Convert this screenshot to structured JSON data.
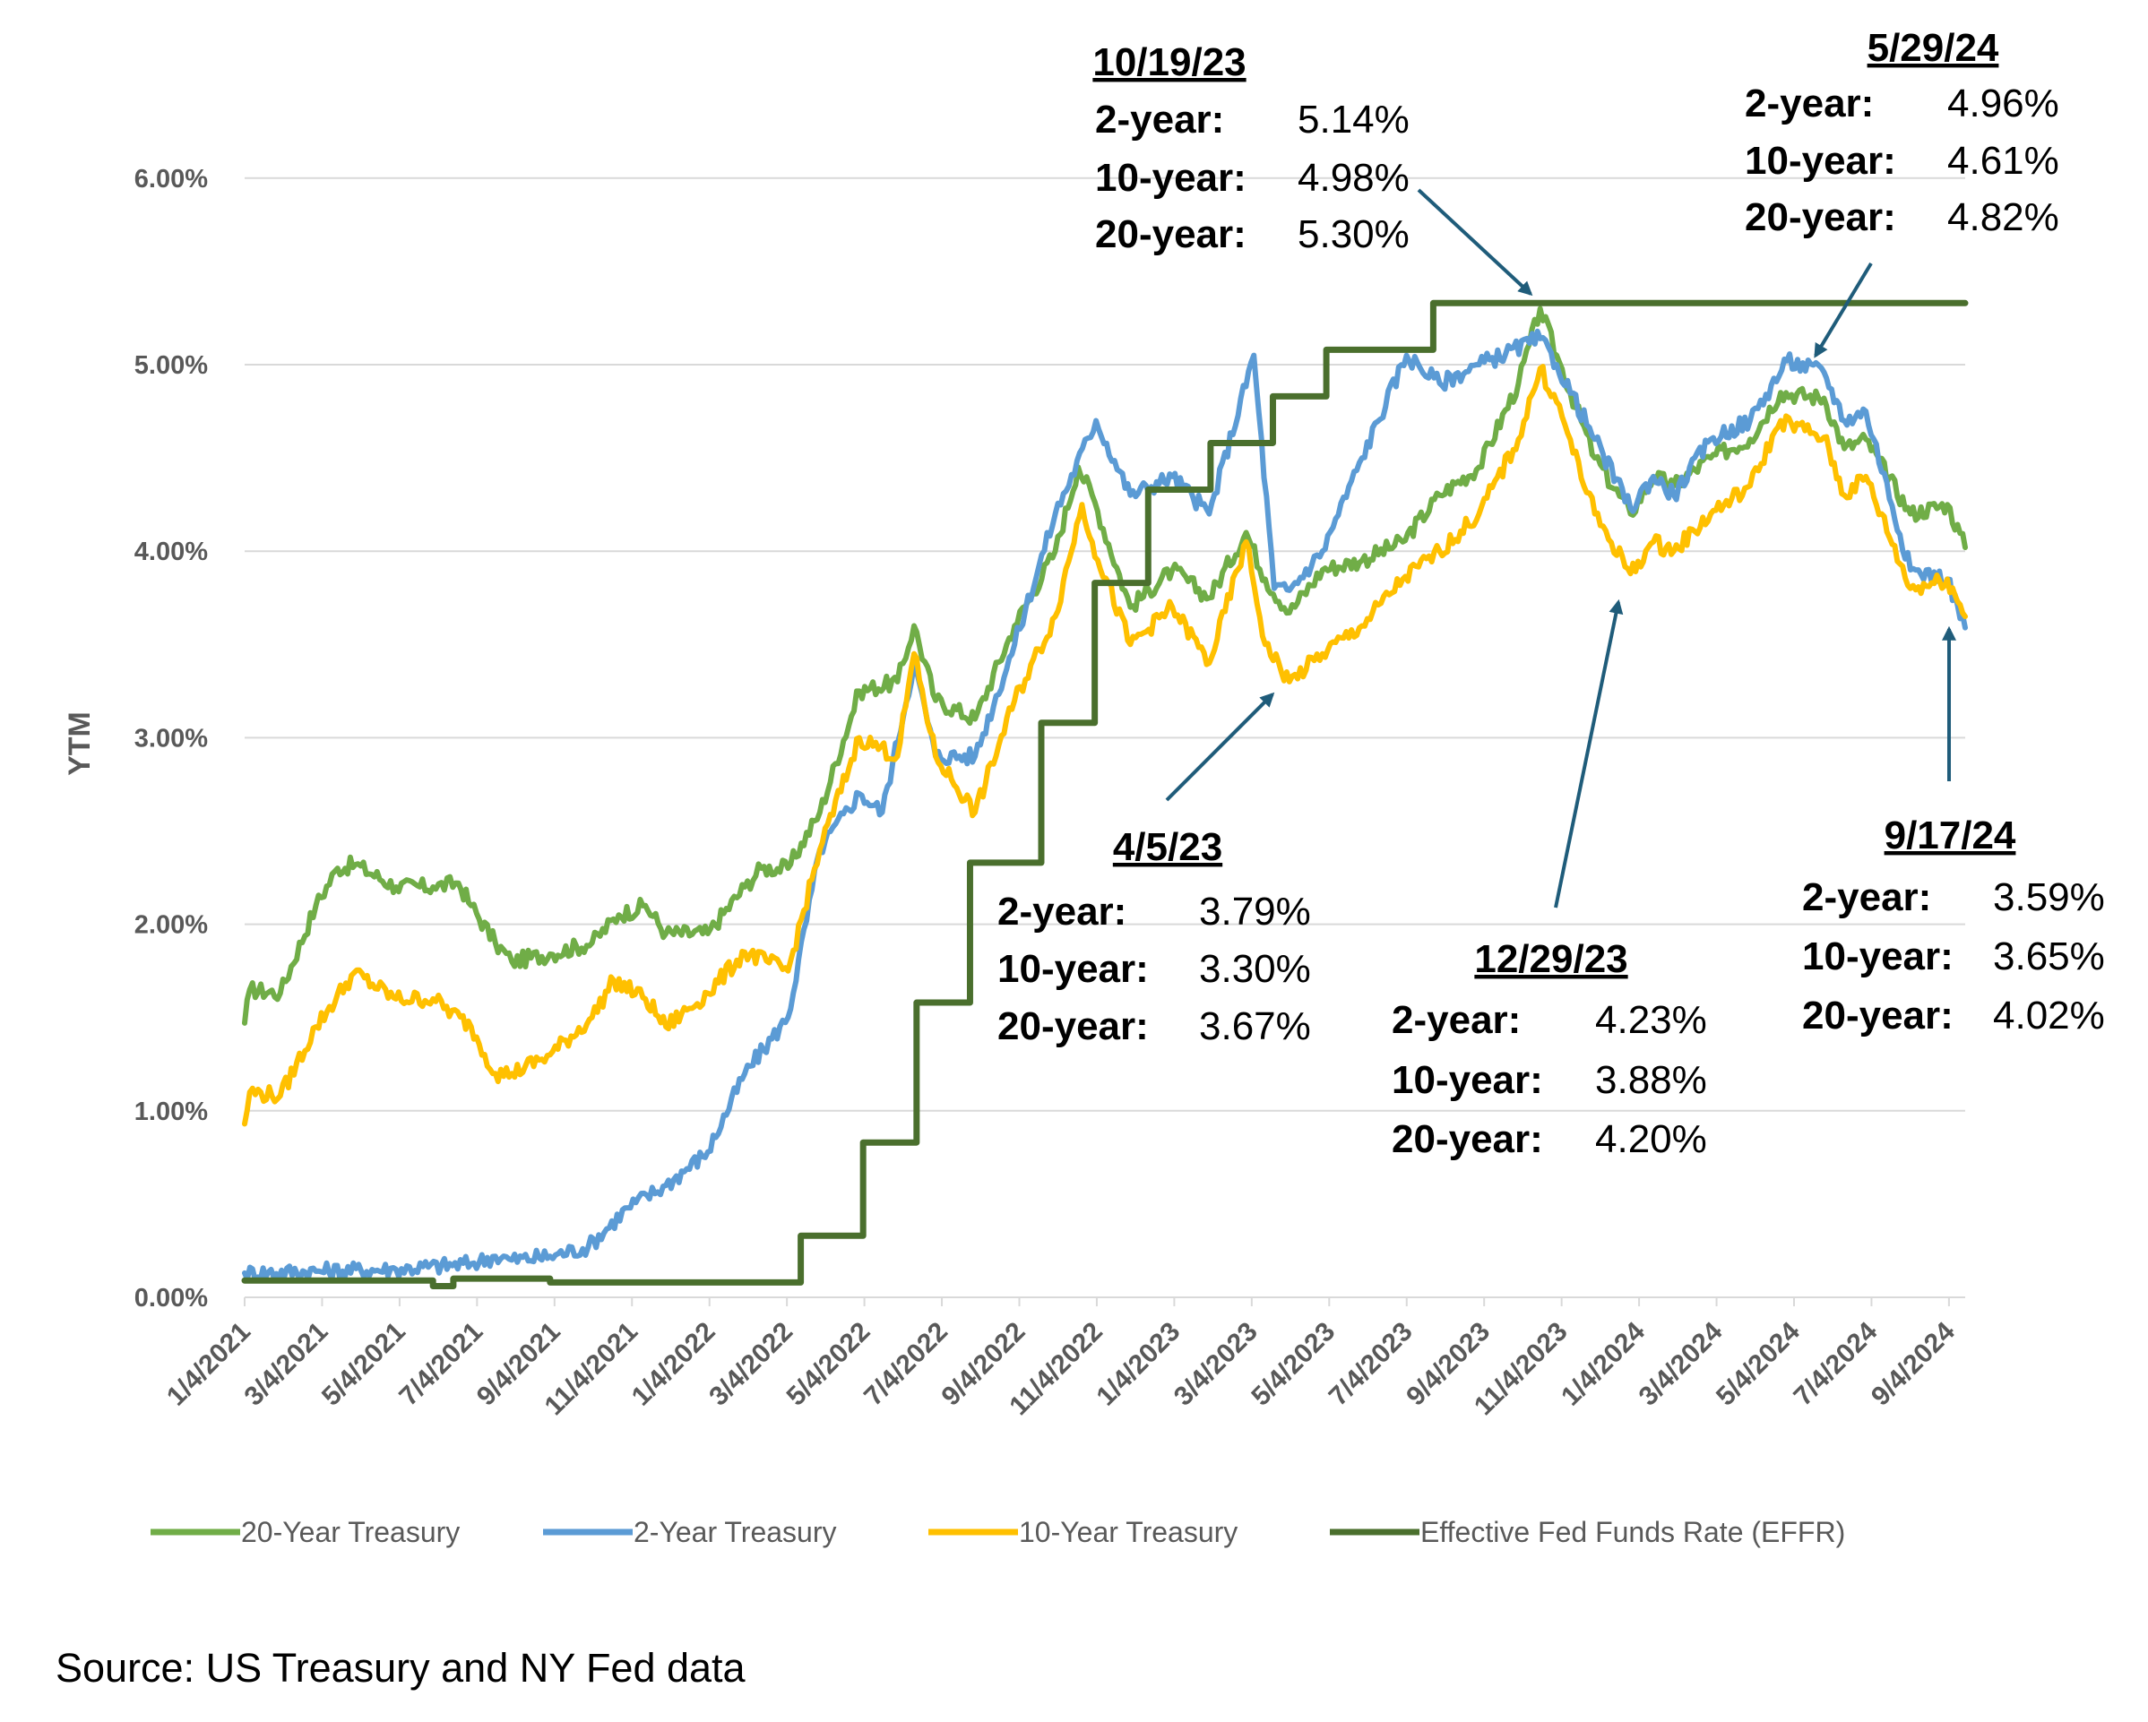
{
  "chart_data": {
    "type": "line",
    "ylabel": "YTM",
    "xlabel": "",
    "title": "",
    "ylim": [
      0,
      6
    ],
    "yticks": [
      "0.00%",
      "1.00%",
      "2.00%",
      "3.00%",
      "4.00%",
      "5.00%",
      "6.00%"
    ],
    "xticks": [
      "1/4/2021",
      "3/4/2021",
      "5/4/2021",
      "7/4/2021",
      "9/4/2021",
      "11/4/2021",
      "1/4/2022",
      "3/4/2022",
      "5/4/2022",
      "7/4/2022",
      "9/4/2022",
      "11/4/2022",
      "1/4/2023",
      "3/4/2023",
      "5/4/2023",
      "7/4/2023",
      "9/4/2023",
      "11/4/2023",
      "1/4/2024",
      "3/4/2024",
      "5/4/2024",
      "7/4/2024",
      "9/4/2024"
    ],
    "xrange": [
      "2021-01-04",
      "2024-09-17"
    ],
    "grid": true,
    "legend_position": "bottom",
    "series": [
      {
        "name": "20-Year Treasury",
        "color": "#70AD47",
        "points": [
          [
            "2021-01-04",
            1.47
          ],
          [
            "2021-01-08",
            1.65
          ],
          [
            "2021-02-01",
            1.63
          ],
          [
            "2021-03-01",
            2.1
          ],
          [
            "2021-03-18",
            2.3
          ],
          [
            "2021-04-01",
            2.32
          ],
          [
            "2021-05-03",
            2.2
          ],
          [
            "2021-06-01",
            2.2
          ],
          [
            "2021-06-21",
            2.22
          ],
          [
            "2021-07-01",
            2.1
          ],
          [
            "2021-07-20",
            1.9
          ],
          [
            "2021-08-02",
            1.8
          ],
          [
            "2021-09-01",
            1.84
          ],
          [
            "2021-10-04",
            1.9
          ],
          [
            "2021-10-25",
            2.05
          ],
          [
            "2021-11-15",
            2.1
          ],
          [
            "2021-12-01",
            1.95
          ],
          [
            "2022-01-03",
            1.95
          ],
          [
            "2022-02-01",
            2.2
          ],
          [
            "2022-02-14",
            2.3
          ],
          [
            "2022-03-07",
            2.3
          ],
          [
            "2022-04-01",
            2.6
          ],
          [
            "2022-05-02",
            3.25
          ],
          [
            "2022-06-01",
            3.3
          ],
          [
            "2022-06-14",
            3.6
          ],
          [
            "2022-07-01",
            3.2
          ],
          [
            "2022-08-01",
            3.1
          ],
          [
            "2022-09-01",
            3.6
          ],
          [
            "2022-10-03",
            4.0
          ],
          [
            "2022-10-21",
            4.45
          ],
          [
            "2022-11-01",
            4.3
          ],
          [
            "2022-12-01",
            3.7
          ],
          [
            "2023-01-03",
            3.9
          ],
          [
            "2023-02-01",
            3.75
          ],
          [
            "2023-03-02",
            4.1
          ],
          [
            "2023-03-17",
            3.85
          ],
          [
            "2023-04-05",
            3.67
          ],
          [
            "2023-05-01",
            3.9
          ],
          [
            "2023-06-01",
            3.95
          ],
          [
            "2023-07-03",
            4.05
          ],
          [
            "2023-08-01",
            4.3
          ],
          [
            "2023-09-01",
            4.45
          ],
          [
            "2023-10-02",
            4.9
          ],
          [
            "2023-10-19",
            5.3
          ],
          [
            "2023-11-01",
            5.05
          ],
          [
            "2023-12-01",
            4.5
          ],
          [
            "2023-12-29",
            4.2
          ],
          [
            "2024-01-16",
            4.4
          ],
          [
            "2024-02-01",
            4.35
          ],
          [
            "2024-03-01",
            4.5
          ],
          [
            "2024-04-01",
            4.6
          ],
          [
            "2024-04-25",
            4.85
          ],
          [
            "2024-05-29",
            4.82
          ],
          [
            "2024-06-14",
            4.55
          ],
          [
            "2024-07-01",
            4.6
          ],
          [
            "2024-08-05",
            4.2
          ],
          [
            "2024-09-03",
            4.25
          ],
          [
            "2024-09-17",
            4.02
          ]
        ]
      },
      {
        "name": "2-Year Treasury",
        "color": "#5B9BD5",
        "points": [
          [
            "2021-01-04",
            0.13
          ],
          [
            "2021-03-01",
            0.14
          ],
          [
            "2021-05-03",
            0.15
          ],
          [
            "2021-07-01",
            0.18
          ],
          [
            "2021-07-20",
            0.22
          ],
          [
            "2021-08-02",
            0.2
          ],
          [
            "2021-09-01",
            0.22
          ],
          [
            "2021-10-01",
            0.27
          ],
          [
            "2021-11-01",
            0.48
          ],
          [
            "2021-12-01",
            0.6
          ],
          [
            "2022-01-03",
            0.78
          ],
          [
            "2022-02-01",
            1.2
          ],
          [
            "2022-03-07",
            1.5
          ],
          [
            "2022-04-01",
            2.4
          ],
          [
            "2022-05-02",
            2.7
          ],
          [
            "2022-05-20",
            2.6
          ],
          [
            "2022-06-14",
            3.4
          ],
          [
            "2022-07-01",
            2.9
          ],
          [
            "2022-08-01",
            2.9
          ],
          [
            "2022-09-01",
            3.5
          ],
          [
            "2022-10-03",
            4.2
          ],
          [
            "2022-11-04",
            4.7
          ],
          [
            "2022-12-01",
            4.3
          ],
          [
            "2023-01-03",
            4.4
          ],
          [
            "2023-02-01",
            4.2
          ],
          [
            "2023-03-08",
            5.05
          ],
          [
            "2023-03-24",
            3.8
          ],
          [
            "2023-04-05",
            3.79
          ],
          [
            "2023-05-01",
            4.0
          ],
          [
            "2023-06-01",
            4.5
          ],
          [
            "2023-07-06",
            5.05
          ],
          [
            "2023-08-01",
            4.9
          ],
          [
            "2023-09-01",
            5.0
          ],
          [
            "2023-10-19",
            5.14
          ],
          [
            "2023-11-01",
            5.0
          ],
          [
            "2023-12-01",
            4.6
          ],
          [
            "2023-12-29",
            4.23
          ],
          [
            "2024-01-16",
            4.4
          ],
          [
            "2024-02-01",
            4.3
          ],
          [
            "2024-03-01",
            4.6
          ],
          [
            "2024-04-01",
            4.7
          ],
          [
            "2024-04-30",
            5.02
          ],
          [
            "2024-05-29",
            4.96
          ],
          [
            "2024-06-14",
            4.7
          ],
          [
            "2024-07-01",
            4.75
          ],
          [
            "2024-08-05",
            3.9
          ],
          [
            "2024-09-03",
            3.85
          ],
          [
            "2024-09-17",
            3.59
          ]
        ]
      },
      {
        "name": "10-Year Treasury",
        "color": "#FFC000",
        "points": [
          [
            "2021-01-04",
            0.93
          ],
          [
            "2021-01-08",
            1.1
          ],
          [
            "2021-02-01",
            1.08
          ],
          [
            "2021-03-01",
            1.45
          ],
          [
            "2021-03-31",
            1.74
          ],
          [
            "2021-05-03",
            1.6
          ],
          [
            "2021-06-01",
            1.6
          ],
          [
            "2021-07-01",
            1.45
          ],
          [
            "2021-07-20",
            1.2
          ],
          [
            "2021-08-02",
            1.2
          ],
          [
            "2021-09-01",
            1.3
          ],
          [
            "2021-10-04",
            1.5
          ],
          [
            "2021-10-21",
            1.7
          ],
          [
            "2021-11-15",
            1.6
          ],
          [
            "2021-12-01",
            1.45
          ],
          [
            "2022-01-03",
            1.63
          ],
          [
            "2022-02-01",
            1.85
          ],
          [
            "2022-03-07",
            1.75
          ],
          [
            "2022-04-01",
            2.4
          ],
          [
            "2022-05-02",
            3.0
          ],
          [
            "2022-06-01",
            2.9
          ],
          [
            "2022-06-14",
            3.45
          ],
          [
            "2022-07-01",
            2.9
          ],
          [
            "2022-08-01",
            2.6
          ],
          [
            "2022-09-01",
            3.2
          ],
          [
            "2022-10-03",
            3.65
          ],
          [
            "2022-10-24",
            4.25
          ],
          [
            "2022-11-01",
            4.05
          ],
          [
            "2022-12-01",
            3.5
          ],
          [
            "2023-01-03",
            3.7
          ],
          [
            "2023-02-01",
            3.4
          ],
          [
            "2023-03-02",
            4.05
          ],
          [
            "2023-03-17",
            3.5
          ],
          [
            "2023-04-05",
            3.3
          ],
          [
            "2023-05-01",
            3.45
          ],
          [
            "2023-06-01",
            3.6
          ],
          [
            "2023-07-03",
            3.85
          ],
          [
            "2023-08-01",
            4.0
          ],
          [
            "2023-09-01",
            4.2
          ],
          [
            "2023-10-02",
            4.6
          ],
          [
            "2023-10-19",
            4.98
          ],
          [
            "2023-11-01",
            4.8
          ],
          [
            "2023-12-01",
            4.2
          ],
          [
            "2023-12-29",
            3.88
          ],
          [
            "2024-01-16",
            4.05
          ],
          [
            "2024-02-01",
            4.0
          ],
          [
            "2024-03-01",
            4.2
          ],
          [
            "2024-04-01",
            4.35
          ],
          [
            "2024-04-25",
            4.7
          ],
          [
            "2024-05-29",
            4.61
          ],
          [
            "2024-06-14",
            4.3
          ],
          [
            "2024-07-01",
            4.4
          ],
          [
            "2024-08-05",
            3.8
          ],
          [
            "2024-09-03",
            3.85
          ],
          [
            "2024-09-17",
            3.65
          ]
        ]
      },
      {
        "name": "Effective Fed Funds Rate (EFFR)",
        "color": "#4A6F2D",
        "step": true,
        "points": [
          [
            "2021-01-04",
            0.09
          ],
          [
            "2021-06-01",
            0.06
          ],
          [
            "2021-06-17",
            0.1
          ],
          [
            "2021-09-01",
            0.08
          ],
          [
            "2022-03-17",
            0.33
          ],
          [
            "2022-05-05",
            0.83
          ],
          [
            "2022-06-16",
            1.58
          ],
          [
            "2022-07-28",
            2.33
          ],
          [
            "2022-09-22",
            3.08
          ],
          [
            "2022-11-03",
            3.83
          ],
          [
            "2022-12-15",
            4.33
          ],
          [
            "2023-02-02",
            4.58
          ],
          [
            "2023-03-23",
            4.83
          ],
          [
            "2023-05-04",
            5.08
          ],
          [
            "2023-07-27",
            5.33
          ],
          [
            "2024-09-17",
            5.33
          ]
        ]
      }
    ],
    "annotations": [
      {
        "date": "10/19/23",
        "rows": [
          [
            "2-year:",
            "5.14%"
          ],
          [
            "10-year:",
            "4.98%"
          ],
          [
            "20-year:",
            "5.30%"
          ]
        ]
      },
      {
        "date": "5/29/24",
        "rows": [
          [
            "2-year:",
            "4.96%"
          ],
          [
            "10-year:",
            "4.61%"
          ],
          [
            "20-year:",
            "4.82%"
          ]
        ]
      },
      {
        "date": "4/5/23",
        "rows": [
          [
            "2-year:",
            "3.79%"
          ],
          [
            "10-year:",
            "3.30%"
          ],
          [
            "20-year:",
            "3.67%"
          ]
        ]
      },
      {
        "date": "12/29/23",
        "rows": [
          [
            "2-year:",
            "4.23%"
          ],
          [
            "10-year:",
            "3.88%"
          ],
          [
            "20-year:",
            "4.20%"
          ]
        ]
      },
      {
        "date": "9/17/24",
        "rows": [
          [
            "2-year:",
            "3.59%"
          ],
          [
            "10-year:",
            "3.65%"
          ],
          [
            "20-year:",
            "4.02%"
          ]
        ]
      }
    ],
    "annotation_color": "#1F5C7A",
    "grid_color": "#D9D9D9"
  },
  "source": "Source: US Treasury and NY Fed data"
}
